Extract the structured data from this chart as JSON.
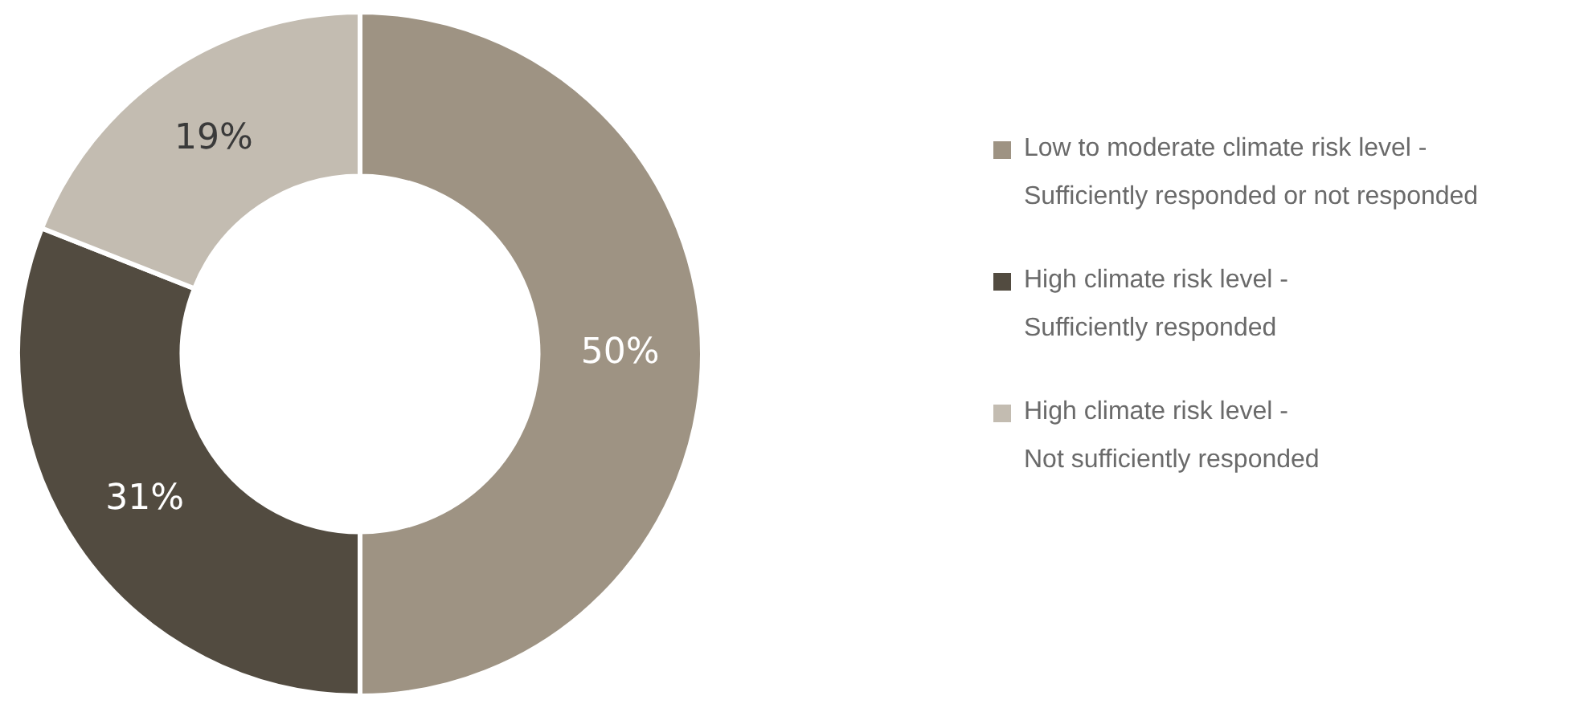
{
  "chart_data": {
    "type": "donut",
    "categories": [
      "Low to moderate climate risk level -\nSufficiently responded or not responded",
      "High climate risk level -\nSufficiently responded",
      "High climate risk level -\nNot sufficiently responded"
    ],
    "values": [
      50,
      31,
      19
    ],
    "colors": [
      "#9e9383",
      "#524b40",
      "#c3bcb1"
    ],
    "value_labels": [
      "50%",
      "31%",
      "19%"
    ],
    "legend": "right"
  }
}
